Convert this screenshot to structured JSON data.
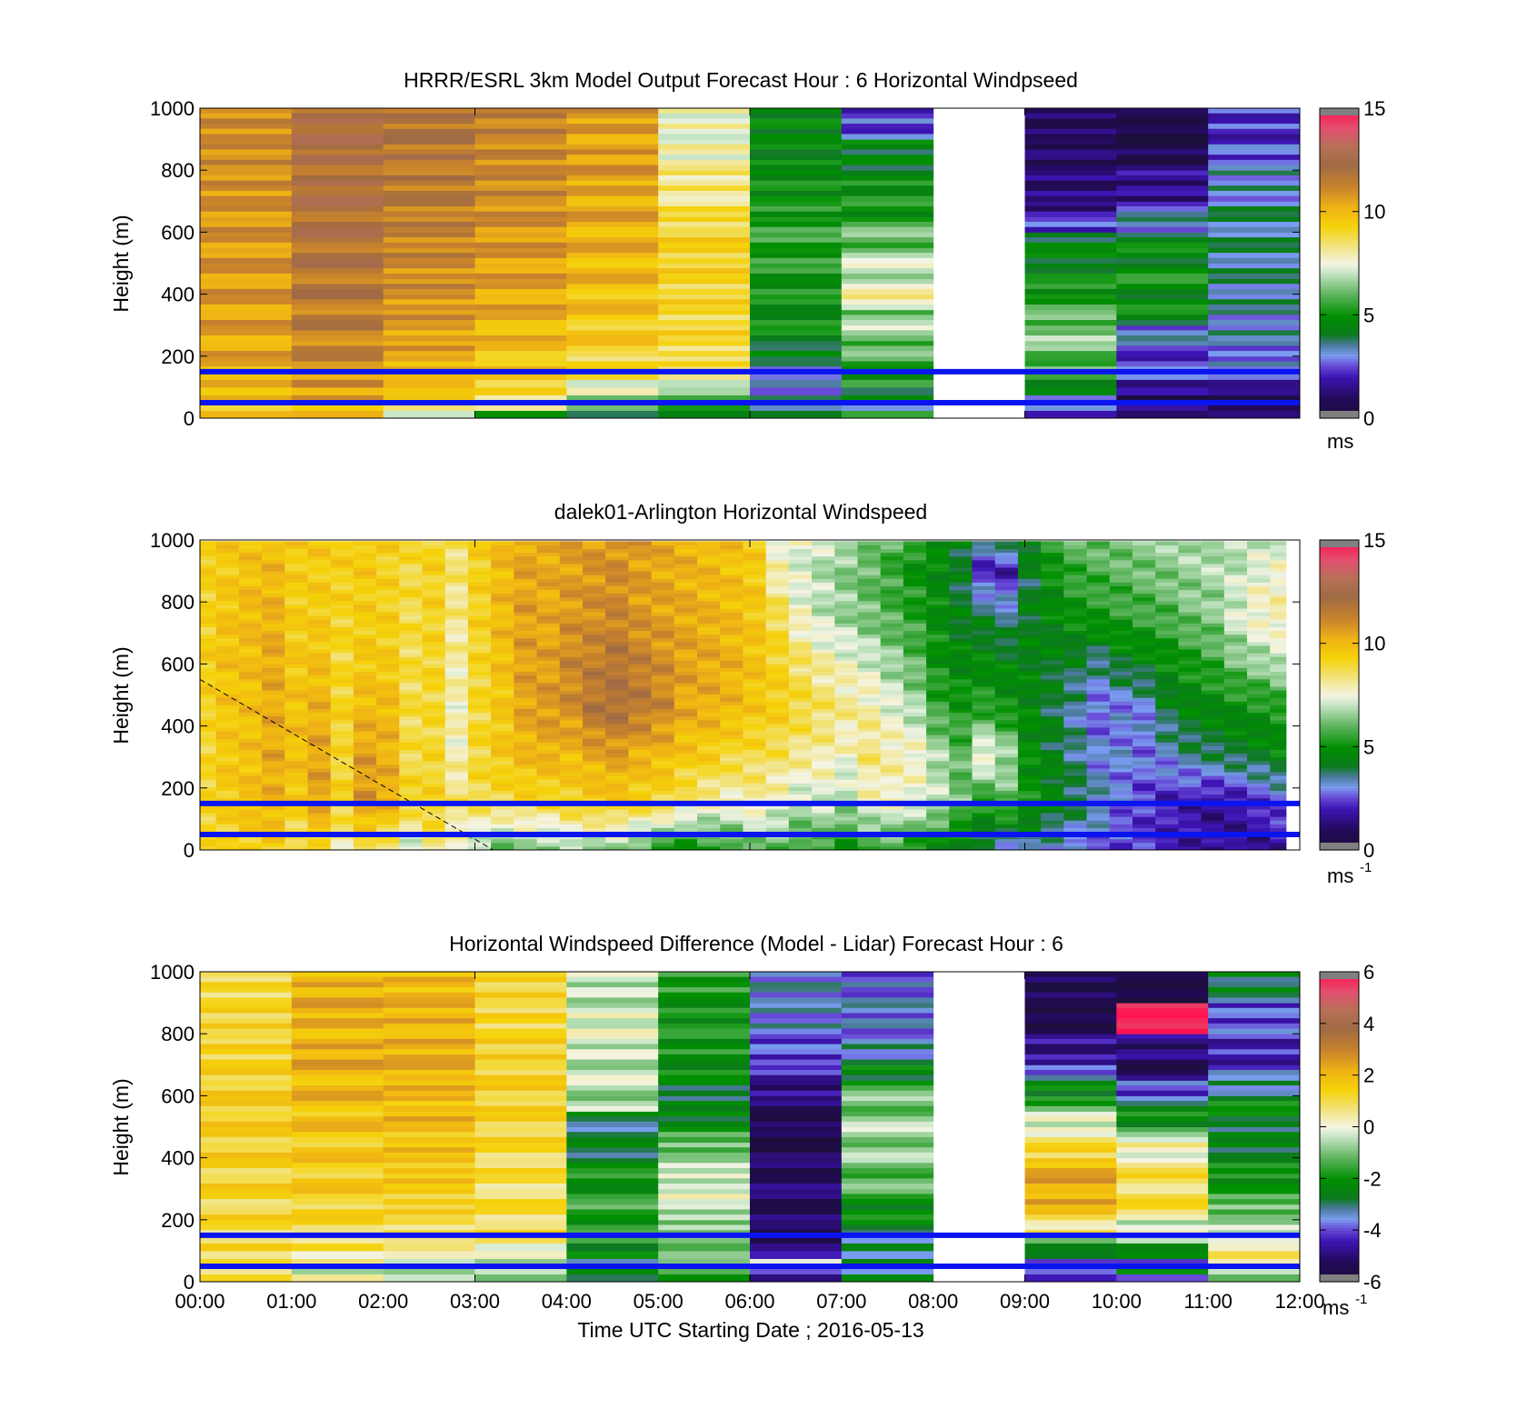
{
  "chart_data": [
    {
      "type": "heatmap",
      "title": "HRRR/ESRL 3km Model Output   Forecast Hour : 6 Horizontal Windpseed",
      "xlabel": "",
      "ylabel": "Height (m)",
      "xlim": [
        0,
        12
      ],
      "ylim": [
        0,
        1000
      ],
      "y_ticks": [
        "0",
        "200",
        "400",
        "600",
        "800",
        "1000"
      ],
      "x_ticks": [],
      "colorbar": {
        "ticks": [
          "0",
          "5",
          "10",
          "15"
        ],
        "range": [
          0,
          15
        ],
        "unit": "ms",
        "unit_sup": ""
      },
      "missing_columns": [
        8
      ],
      "layers_m": [
        0,
        25,
        50,
        75,
        100,
        125,
        150,
        200,
        250,
        300,
        350,
        400,
        450,
        500,
        550,
        600,
        650,
        700,
        800,
        900,
        1000
      ],
      "columns": [
        [
          9.5,
          9.5,
          9.8,
          10,
          10,
          10.2,
          10.3,
          10.4,
          10.5,
          10.6,
          10.7,
          10.7,
          10.8,
          10.8,
          10.8,
          10.9,
          10.9,
          11,
          11,
          11.1
        ],
        [
          9.6,
          10,
          10.4,
          10.6,
          10.8,
          11,
          11.1,
          11.3,
          11.4,
          11.5,
          11.6,
          11.7,
          11.8,
          11.9,
          12,
          12,
          12.1,
          12.1,
          12.2,
          12.2
        ],
        [
          7,
          8.5,
          9.5,
          9.8,
          10,
          10.2,
          10.3,
          10.5,
          10.6,
          10.8,
          10.9,
          11,
          11.1,
          11.2,
          11.3,
          11.4,
          11.5,
          11.6,
          11.7,
          11.8
        ],
        [
          5.5,
          7.5,
          8.5,
          9,
          9.2,
          9.4,
          9.6,
          9.8,
          10,
          10.2,
          10.4,
          10.5,
          10.6,
          10.7,
          10.8,
          10.9,
          11,
          11.1,
          11.2,
          11.3
        ],
        [
          4.5,
          5.5,
          6.8,
          7.2,
          7.8,
          8.4,
          9.0,
          9.3,
          9.5,
          9.6,
          9.8,
          9.9,
          10,
          10.1,
          10.2,
          10.3,
          10.4,
          10.5,
          10.6,
          10.7
        ],
        [
          4.5,
          5.0,
          5.8,
          6.5,
          7.2,
          8.0,
          8.6,
          8.9,
          9.0,
          9.0,
          9.1,
          9.1,
          9.2,
          9.2,
          9.2,
          8.9,
          8.6,
          8.3,
          7.8,
          7.6
        ],
        [
          3.5,
          3.8,
          3.3,
          3.0,
          3.0,
          3.2,
          3.4,
          4.2,
          4.8,
          4.8,
          4.9,
          5.0,
          5.2,
          5.3,
          5.4,
          5.4,
          5.1,
          4.9,
          4.5,
          4.7
        ],
        [
          4.8,
          3.8,
          4.0,
          4.5,
          5.0,
          5.2,
          5.4,
          6.0,
          6.8,
          6.3,
          7.8,
          7.5,
          7.0,
          6.8,
          6.0,
          5.8,
          5.0,
          4.8,
          4.4,
          2.4
        ],
        [],
        [
          2.4,
          2.6,
          3.2,
          4.2,
          4.6,
          5.2,
          5.8,
          6.2,
          6.5,
          6.0,
          5.4,
          5.0,
          4.6,
          4.4,
          4.3,
          2.3,
          1.6,
          1.2,
          1.0,
          0.8
        ],
        [
          1.8,
          1.0,
          0.9,
          1.2,
          2.0,
          2.2,
          2.4,
          2.6,
          3.0,
          4.5,
          4.7,
          4.9,
          4.9,
          4.6,
          4.4,
          3.2,
          2.8,
          1.5,
          0.6,
          0.4
        ],
        [
          1.6,
          0.6,
          0.6,
          1.2,
          1.8,
          2.4,
          2.8,
          3.0,
          3.2,
          3.3,
          3.4,
          3.5,
          3.5,
          3.6,
          3.6,
          3.6,
          3.6,
          3.2,
          2.6,
          2.2
        ]
      ]
    },
    {
      "type": "heatmap",
      "title": "dalek01-Arlington  Horizontal Windspeed",
      "xlabel": "",
      "ylabel": "Height (m)",
      "xlim": [
        0,
        12
      ],
      "ylim": [
        0,
        1000
      ],
      "y_ticks": [
        "0",
        "200",
        "400",
        "600",
        "800",
        "1000"
      ],
      "x_ticks": [],
      "colorbar": {
        "ticks": [
          "0",
          "5",
          "10",
          "15"
        ],
        "range": [
          0,
          15
        ],
        "unit": "ms",
        "unit_sup": "-1"
      },
      "x_end": 11.85,
      "y_end": 990,
      "profile_times": [
        0.05,
        0.3,
        0.55,
        0.8,
        1.05,
        1.3,
        1.55,
        1.8,
        2.05,
        2.3,
        2.55,
        2.8,
        3.05,
        3.3,
        3.55,
        3.8,
        4.05,
        4.3,
        4.55,
        4.8,
        5.05,
        5.3,
        5.55,
        5.8,
        6.05,
        6.3,
        6.55,
        6.8,
        7.05,
        7.3,
        7.55,
        7.8,
        8.05,
        8.3,
        8.55,
        8.8,
        9.05,
        9.3,
        9.55,
        9.8,
        10.05,
        10.3,
        10.55,
        10.8,
        11.05,
        11.3,
        11.55,
        11.8
      ],
      "profile_heights_m": [
        0,
        150,
        300,
        450,
        600,
        750,
        900,
        1000
      ],
      "profiles": [
        [
          9.0,
          9.2,
          9.0,
          9.2,
          9.4,
          9.2,
          9.3,
          9.5
        ],
        [
          9.2,
          9.5,
          9.6,
          9.6,
          9.8,
          9.7,
          9.5,
          9.6
        ],
        [
          9.3,
          9.8,
          9.8,
          9.8,
          9.9,
          10.0,
          9.8,
          9.7
        ],
        [
          9.5,
          10.2,
          10.4,
          10.3,
          10.4,
          10.2,
          10.0,
          9.9
        ],
        [
          8.4,
          9.6,
          9.8,
          9.8,
          9.6,
          9.4,
          9.4,
          9.5
        ],
        [
          9.0,
          10.5,
          10.5,
          10.2,
          9.8,
          9.5,
          9.4,
          9.6
        ],
        [
          8.0,
          9.2,
          9.0,
          9.2,
          9.0,
          9.2,
          9.3,
          9.4
        ],
        [
          8.5,
          10.8,
          10.6,
          10.0,
          9.6,
          9.4,
          9.5,
          9.6
        ],
        [
          8.2,
          10.4,
          10.2,
          10.0,
          9.5,
          9.3,
          9.2,
          9.4
        ],
        [
          7.0,
          9.2,
          8.8,
          8.8,
          8.8,
          8.8,
          8.9,
          9.0
        ],
        [
          8.4,
          9.2,
          9.0,
          9.0,
          9.1,
          9.2,
          9.2,
          9.3
        ],
        [
          7.6,
          8.5,
          7.8,
          7.8,
          8.0,
          8.2,
          8.4,
          8.6
        ],
        [
          6.5,
          8.8,
          9.0,
          9.0,
          9.1,
          9.2,
          9.3,
          9.4
        ],
        [
          6.0,
          8.8,
          9.6,
          9.6,
          9.8,
          10.0,
          10.0,
          10.0
        ],
        [
          6.4,
          9.0,
          10.0,
          10.5,
          10.6,
          10.6,
          10.5,
          10.4
        ],
        [
          6.2,
          9.0,
          10.2,
          10.8,
          10.6,
          10.4,
          10.4,
          10.4
        ],
        [
          6.8,
          9.2,
          10.0,
          11.0,
          11.2,
          10.8,
          10.6,
          10.6
        ],
        [
          6.5,
          9.4,
          10.4,
          11.8,
          11.4,
          11.0,
          10.8,
          10.8
        ],
        [
          6.6,
          9.6,
          10.6,
          12.0,
          11.8,
          11.2,
          11.0,
          10.8
        ],
        [
          5.8,
          9.3,
          10.2,
          11.6,
          11.4,
          10.8,
          10.6,
          10.8
        ],
        [
          5.2,
          9.0,
          10.0,
          11.2,
          11.0,
          10.6,
          10.4,
          10.4
        ],
        [
          5.0,
          8.4,
          9.6,
          10.4,
          10.6,
          10.4,
          10.2,
          10.2
        ],
        [
          5.2,
          8.0,
          9.4,
          10.3,
          10.4,
          10.2,
          10.0,
          10.0
        ],
        [
          5.5,
          7.8,
          9.0,
          10.0,
          10.2,
          10.0,
          9.8,
          9.8
        ],
        [
          6.0,
          8.0,
          8.8,
          9.6,
          9.8,
          9.6,
          9.5,
          9.4
        ],
        [
          6.0,
          7.6,
          8.6,
          9.4,
          9.2,
          8.8,
          7.8,
          7.6
        ],
        [
          5.5,
          7.0,
          8.2,
          9.0,
          8.6,
          7.6,
          7.2,
          7.5
        ],
        [
          5.5,
          7.2,
          8.0,
          8.6,
          8.0,
          7.0,
          6.8,
          7.2
        ],
        [
          5.0,
          6.8,
          7.6,
          8.2,
          7.6,
          6.6,
          6.4,
          6.8
        ],
        [
          5.4,
          7.6,
          8.4,
          8.0,
          7.2,
          6.2,
          6.0,
          6.4
        ],
        [
          5.6,
          7.8,
          8.0,
          7.4,
          6.6,
          5.8,
          5.5,
          6.0
        ],
        [
          5.0,
          7.4,
          7.8,
          6.8,
          6.0,
          5.4,
          5.0,
          5.4
        ],
        [
          4.6,
          7.0,
          6.8,
          5.6,
          5.0,
          4.8,
          4.6,
          5.0
        ],
        [
          4.2,
          6.2,
          6.0,
          5.2,
          4.6,
          4.2,
          4.0,
          4.4
        ],
        [
          3.6,
          5.2,
          7.8,
          5.4,
          4.6,
          4.0,
          2.0,
          3.8
        ],
        [
          3.0,
          6.0,
          6.8,
          5.0,
          4.4,
          3.6,
          1.8,
          4.4
        ],
        [
          3.4,
          5.0,
          4.8,
          4.6,
          4.4,
          4.2,
          4.0,
          4.8
        ],
        [
          3.0,
          4.6,
          4.2,
          4.0,
          4.2,
          4.6,
          5.0,
          5.6
        ],
        [
          2.8,
          4.0,
          3.6,
          3.4,
          4.0,
          5.0,
          5.6,
          6.0
        ],
        [
          2.6,
          3.4,
          3.0,
          2.6,
          3.6,
          5.2,
          5.8,
          6.2
        ],
        [
          2.4,
          2.8,
          3.0,
          2.8,
          4.2,
          5.4,
          6.0,
          6.4
        ],
        [
          2.2,
          2.4,
          2.8,
          3.0,
          4.4,
          5.6,
          6.2,
          6.6
        ],
        [
          2.0,
          2.0,
          3.2,
          4.0,
          4.8,
          5.8,
          6.4,
          6.6
        ],
        [
          1.8,
          1.8,
          3.6,
          4.4,
          5.2,
          6.2,
          6.6,
          6.8
        ],
        [
          1.6,
          1.6,
          3.8,
          4.6,
          5.6,
          6.4,
          6.8,
          6.8
        ],
        [
          1.6,
          1.8,
          4.0,
          4.8,
          6.2,
          7.2,
          7.0,
          6.6
        ],
        [
          1.4,
          2.2,
          4.2,
          5.0,
          6.6,
          7.8,
          7.4,
          6.8
        ],
        [
          1.8,
          2.6,
          4.6,
          5.2,
          7.0,
          8.0,
          7.6,
          7.0
        ]
      ],
      "dashed_line": {
        "x": [
          0,
          3.2
        ],
        "y": [
          550,
          0
        ]
      }
    },
    {
      "type": "heatmap",
      "title": "Horizontal Windspeed Difference (Model - Lidar) Forecast Hour : 6",
      "xlabel": "Time UTC  Starting Date ; 2016-05-13",
      "ylabel": "Height (m)",
      "xlim": [
        0,
        12
      ],
      "ylim": [
        0,
        1000
      ],
      "y_ticks": [
        "0",
        "200",
        "400",
        "600",
        "800",
        "1000"
      ],
      "x_ticks": [
        "00:00",
        "01:00",
        "02:00",
        "03:00",
        "04:00",
        "05:00",
        "06:00",
        "07:00",
        "08:00",
        "09:00",
        "10:00",
        "11:00",
        "12:00"
      ],
      "colorbar": {
        "ticks": [
          "-6",
          "-4",
          "-2",
          "0",
          "2",
          "4",
          "6"
        ],
        "range": [
          -6,
          6
        ],
        "unit": "ms",
        "unit_sup": "-1"
      },
      "missing_columns": [
        8
      ],
      "layers_m": [
        0,
        25,
        50,
        75,
        100,
        125,
        150,
        200,
        250,
        300,
        350,
        400,
        450,
        500,
        550,
        600,
        650,
        700,
        800,
        900,
        1000
      ],
      "columns": [
        [
          0.8,
          1.0,
          0.8,
          1.0,
          1.2,
          1.1,
          1.0,
          1.2,
          1.2,
          1.3,
          1.3,
          1.4,
          1.4,
          1.5,
          1.5,
          1.4,
          1.4,
          1.3,
          1.2,
          1.1
        ],
        [
          0.0,
          -0.2,
          0.2,
          0.6,
          0.8,
          1.0,
          1.0,
          1.3,
          1.5,
          1.5,
          1.6,
          1.6,
          1.7,
          1.8,
          2.0,
          2.0,
          2.1,
          2.2,
          2.2,
          2.1
        ],
        [
          -0.4,
          -0.8,
          -0.5,
          0.4,
          0.6,
          0.8,
          1.0,
          1.2,
          1.5,
          1.6,
          1.8,
          1.8,
          1.8,
          2.0,
          2.0,
          2.0,
          2.2,
          2.2,
          2.1,
          2.0
        ],
        [
          -0.6,
          -0.8,
          -0.4,
          -0.2,
          0.2,
          0.6,
          1.0,
          1.0,
          0.9,
          0.9,
          1.0,
          1.1,
          1.2,
          1.3,
          1.3,
          1.4,
          1.3,
          1.3,
          1.2,
          1.2
        ],
        [
          -2.4,
          -2.8,
          -2.8,
          -2.5,
          -2.2,
          -2.0,
          -1.8,
          -1.6,
          -1.8,
          -2.0,
          -2.2,
          -2.8,
          -3.0,
          -2.8,
          -0.6,
          -0.5,
          -0.4,
          -0.3,
          -0.2,
          -0.4
        ],
        [
          -2.0,
          -1.4,
          -0.8,
          -1.0,
          -1.2,
          -1.2,
          -1.0,
          -0.4,
          -0.2,
          -0.2,
          -0.6,
          -1.0,
          -1.6,
          -2.4,
          -2.8,
          -2.6,
          -2.2,
          -2.0,
          -2.0,
          -1.8
        ],
        [
          -5.4,
          -3.5,
          -0.5,
          -4.0,
          -5.2,
          -5.3,
          -5.4,
          -5.3,
          -5.2,
          -5.2,
          -5.3,
          -5.5,
          -5.6,
          -5.5,
          -5.2,
          -4.8,
          -4.4,
          -4.0,
          -3.6,
          -3.4
        ],
        [
          -2.8,
          -3.0,
          -3.0,
          -3.0,
          -3.0,
          -3.0,
          -2.6,
          -2.2,
          -1.6,
          -1.2,
          -1.0,
          -0.8,
          -0.6,
          -0.8,
          -1.0,
          -1.4,
          -2.4,
          -3.4,
          -3.6,
          -3.8
        ],
        [],
        [
          -4.0,
          -4.2,
          -3.8,
          -3.0,
          -2.2,
          -1.4,
          0.6,
          1.6,
          2.2,
          2.4,
          2.0,
          1.2,
          0.4,
          -0.2,
          -1.5,
          -2.4,
          -3.6,
          -4.8,
          -5.6,
          -5.5
        ],
        [
          -3.4,
          -2.6,
          -3.6,
          -2.8,
          -1.8,
          -1.0,
          -0.2,
          0.8,
          1.0,
          1.0,
          0.6,
          0.2,
          -0.8,
          -2.2,
          -3.0,
          -4.0,
          -5.4,
          -5.0,
          6.0,
          -5.8
        ],
        [
          -1.0,
          -0.6,
          0.6,
          0.8,
          0.5,
          -0.4,
          -0.6,
          -1.0,
          -1.6,
          -2.0,
          -2.2,
          -2.6,
          -2.8,
          -2.4,
          -2.2,
          -3.2,
          -3.8,
          -4.4,
          -4.0,
          -2.8
        ]
      ]
    }
  ],
  "reference_lines_m": [
    150,
    50
  ],
  "reference_line_color": "#0a14f0",
  "colormap": {
    "low_color": "#808080",
    "high_color": "#ff1450",
    "stops": [
      [
        0.0,
        "#1c0f3c"
      ],
      [
        0.06,
        "#220a58"
      ],
      [
        0.13,
        "#3d14b4"
      ],
      [
        0.17,
        "#6a4fd8"
      ],
      [
        0.2,
        "#7a9cf0"
      ],
      [
        0.235,
        "#4a7a9a"
      ],
      [
        0.27,
        "#0b7a1c"
      ],
      [
        0.33,
        "#009000"
      ],
      [
        0.4,
        "#5fb45f"
      ],
      [
        0.47,
        "#c8e6c8"
      ],
      [
        0.5,
        "#f4f4e4"
      ],
      [
        0.56,
        "#f2e278"
      ],
      [
        0.62,
        "#f5d20a"
      ],
      [
        0.68,
        "#f0b414"
      ],
      [
        0.75,
        "#c8822c"
      ],
      [
        0.82,
        "#9f6a44"
      ],
      [
        0.88,
        "#b87058"
      ],
      [
        0.94,
        "#e25070"
      ],
      [
        1.0,
        "#ff1450"
      ]
    ]
  }
}
